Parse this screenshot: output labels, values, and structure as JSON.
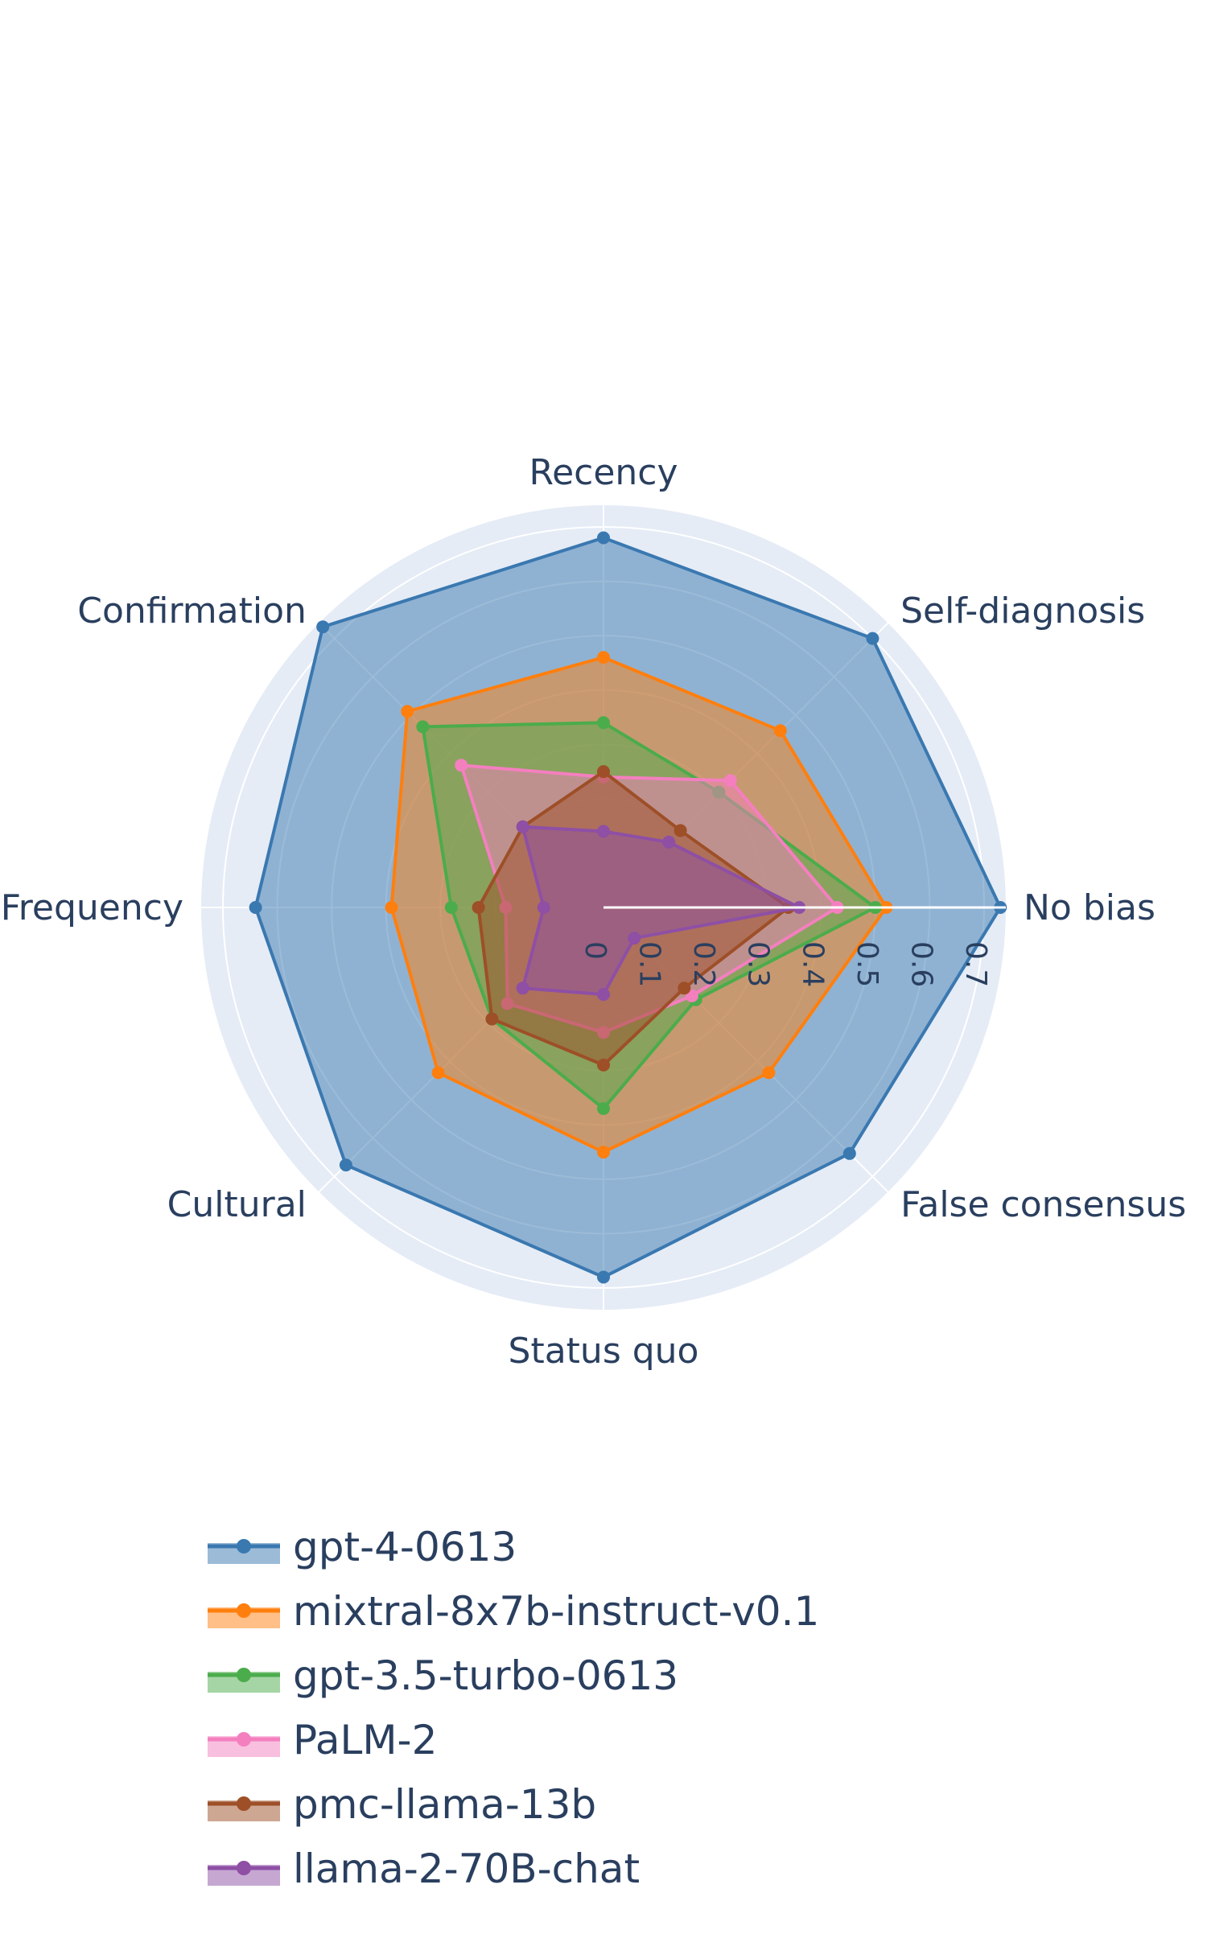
{
  "chart_data": {
    "type": "radar",
    "title": "",
    "categories": [
      "No bias",
      "Self-diagnosis",
      "Recency",
      "Confirmation",
      "Frequency",
      "Cultural",
      "Status quo",
      "False consensus"
    ],
    "radial_ticks": [
      "0",
      "0.1",
      "0.2",
      "0.3",
      "0.4",
      "0.5",
      "0.6",
      "0.7"
    ],
    "radial_range": [
      0,
      0.74
    ],
    "grid": true,
    "legend_position": "bottom",
    "series": [
      {
        "name": "gpt-4-0613",
        "color": "#3a78b0",
        "values": [
          0.73,
          0.7,
          0.68,
          0.73,
          0.64,
          0.67,
          0.68,
          0.64
        ]
      },
      {
        "name": "mixtral-8x7b-instruct-v0.1",
        "color": "#ff7f0e",
        "values": [
          0.52,
          0.46,
          0.46,
          0.51,
          0.39,
          0.43,
          0.45,
          0.43
        ]
      },
      {
        "name": "gpt-3.5-turbo-0613",
        "color": "#4bac4b",
        "values": [
          0.5,
          0.3,
          0.34,
          0.47,
          0.28,
          0.29,
          0.37,
          0.24
        ]
      },
      {
        "name": "PaLM-2",
        "color": "#f47fbf",
        "values": [
          0.43,
          0.33,
          0.24,
          0.37,
          0.18,
          0.25,
          0.23,
          0.23
        ]
      },
      {
        "name": "pmc-llama-13b",
        "color": "#9e4f27",
        "values": [
          0.34,
          0.2,
          0.25,
          0.21,
          0.23,
          0.29,
          0.29,
          0.21
        ]
      },
      {
        "name": "llama-2-70B-chat",
        "color": "#8e4fa5",
        "values": [
          0.36,
          0.17,
          0.14,
          0.21,
          0.11,
          0.21,
          0.16,
          0.08
        ]
      }
    ]
  }
}
